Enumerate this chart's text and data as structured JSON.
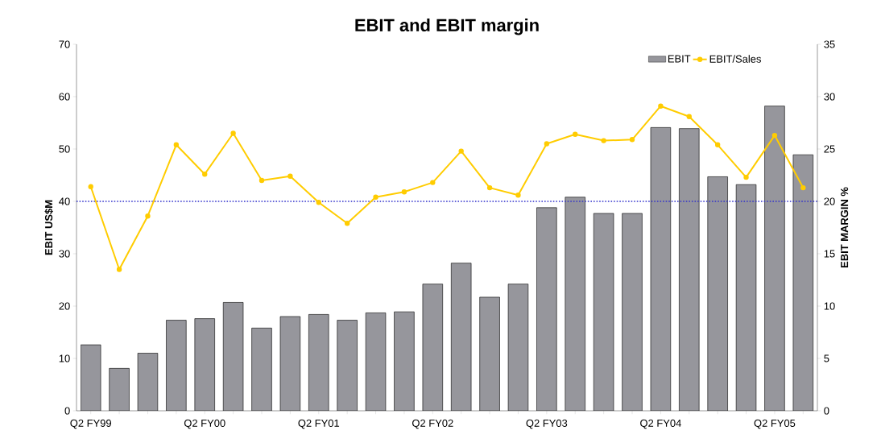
{
  "chart_data": {
    "type": "bar",
    "title": "EBIT and EBIT margin",
    "ylabel": "EBIT US$M",
    "y2label": "EBIT MARGIN %",
    "categories": [
      "Q2 FY99",
      null,
      null,
      null,
      "Q2 FY00",
      null,
      null,
      null,
      "Q2 FY01",
      null,
      null,
      null,
      "Q2 FY02",
      null,
      null,
      null,
      "Q2 FY03",
      null,
      null,
      null,
      "Q2 FY04",
      null,
      null,
      null,
      "Q2 FY05",
      null
    ],
    "series": [
      {
        "name": "EBIT",
        "color": "#96969c",
        "values": [
          12.6,
          8.1,
          11.0,
          17.3,
          17.6,
          20.7,
          15.8,
          18.0,
          18.4,
          17.3,
          18.7,
          18.9,
          24.2,
          28.2,
          21.7,
          24.2,
          38.8,
          40.8,
          37.7,
          37.7,
          54.1,
          53.9,
          44.7,
          43.2,
          58.2,
          48.9
        ]
      },
      {
        "name": "EBIT/Sales",
        "type": "line",
        "axis": "y2",
        "color": "#ffcc00",
        "values": [
          21.4,
          13.5,
          18.6,
          25.4,
          22.6,
          26.5,
          22.0,
          22.4,
          19.9,
          17.9,
          20.4,
          20.9,
          21.8,
          24.8,
          21.3,
          20.6,
          25.5,
          26.4,
          25.8,
          25.9,
          29.1,
          28.1,
          25.4,
          22.3,
          26.3,
          21.3
        ]
      }
    ],
    "ylim": [
      0,
      70
    ],
    "yticks": [
      0,
      10,
      20,
      30,
      40,
      50,
      60,
      70
    ],
    "y2lim": [
      0,
      35
    ],
    "y2ticks": [
      0,
      5,
      10,
      15,
      20,
      25,
      30,
      35
    ],
    "ref_lines": [
      {
        "axis": "y",
        "value": 40,
        "color": "#3333cc",
        "line_style": "dotted"
      }
    ],
    "legend": "top right",
    "marker": "circle"
  }
}
